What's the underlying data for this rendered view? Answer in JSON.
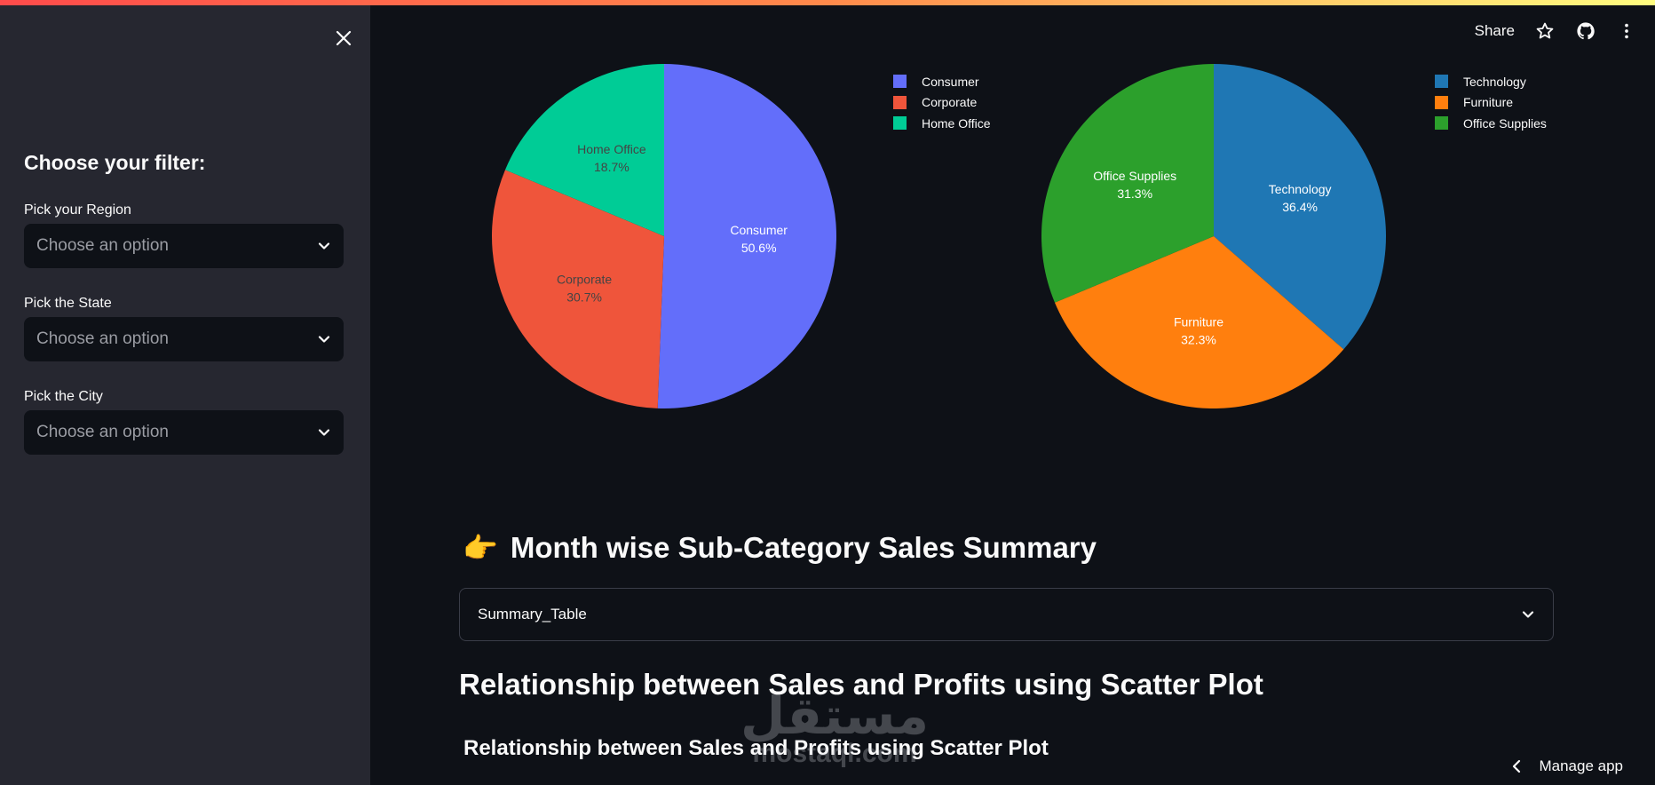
{
  "sidebar": {
    "title": "Choose your filter:",
    "filters": [
      {
        "label": "Pick your Region",
        "placeholder": "Choose an option"
      },
      {
        "label": "Pick the State",
        "placeholder": "Choose an option"
      },
      {
        "label": "Pick the City",
        "placeholder": "Choose an option"
      }
    ]
  },
  "header": {
    "share_label": "Share",
    "icons": [
      "star-icon",
      "github-icon",
      "more-vertical-icon"
    ]
  },
  "chart_data": [
    {
      "type": "pie",
      "labels": [
        "Consumer",
        "Corporate",
        "Home Office"
      ],
      "values": [
        50.6,
        30.7,
        18.7
      ],
      "percent_labels": [
        "50.6%",
        "30.7%",
        "18.7%"
      ],
      "colors": [
        "#636efa",
        "#ef553b",
        "#00cc96"
      ],
      "legend_position": "top-right"
    },
    {
      "type": "pie",
      "labels": [
        "Technology",
        "Furniture",
        "Office Supplies"
      ],
      "values": [
        36.4,
        32.3,
        31.3
      ],
      "percent_labels": [
        "36.4%",
        "32.3%",
        "31.3%"
      ],
      "colors": [
        "#1f77b4",
        "#ff7f0e",
        "#2ca02c"
      ],
      "legend_position": "top-right"
    }
  ],
  "main": {
    "summary_heading": "Month wise Sub-Category Sales Summary",
    "summary_emoji": "👉",
    "expander_label": "Summary_Table",
    "scatter_heading": "Relationship between Sales and Profits using Scatter Plot",
    "scatter_subheading": "Relationship between Sales and Profits using Scatter Plot"
  },
  "watermark": {
    "arabic": "مستقل",
    "latin": "mostaql.com"
  },
  "footer": {
    "manage_label": "Manage app"
  }
}
